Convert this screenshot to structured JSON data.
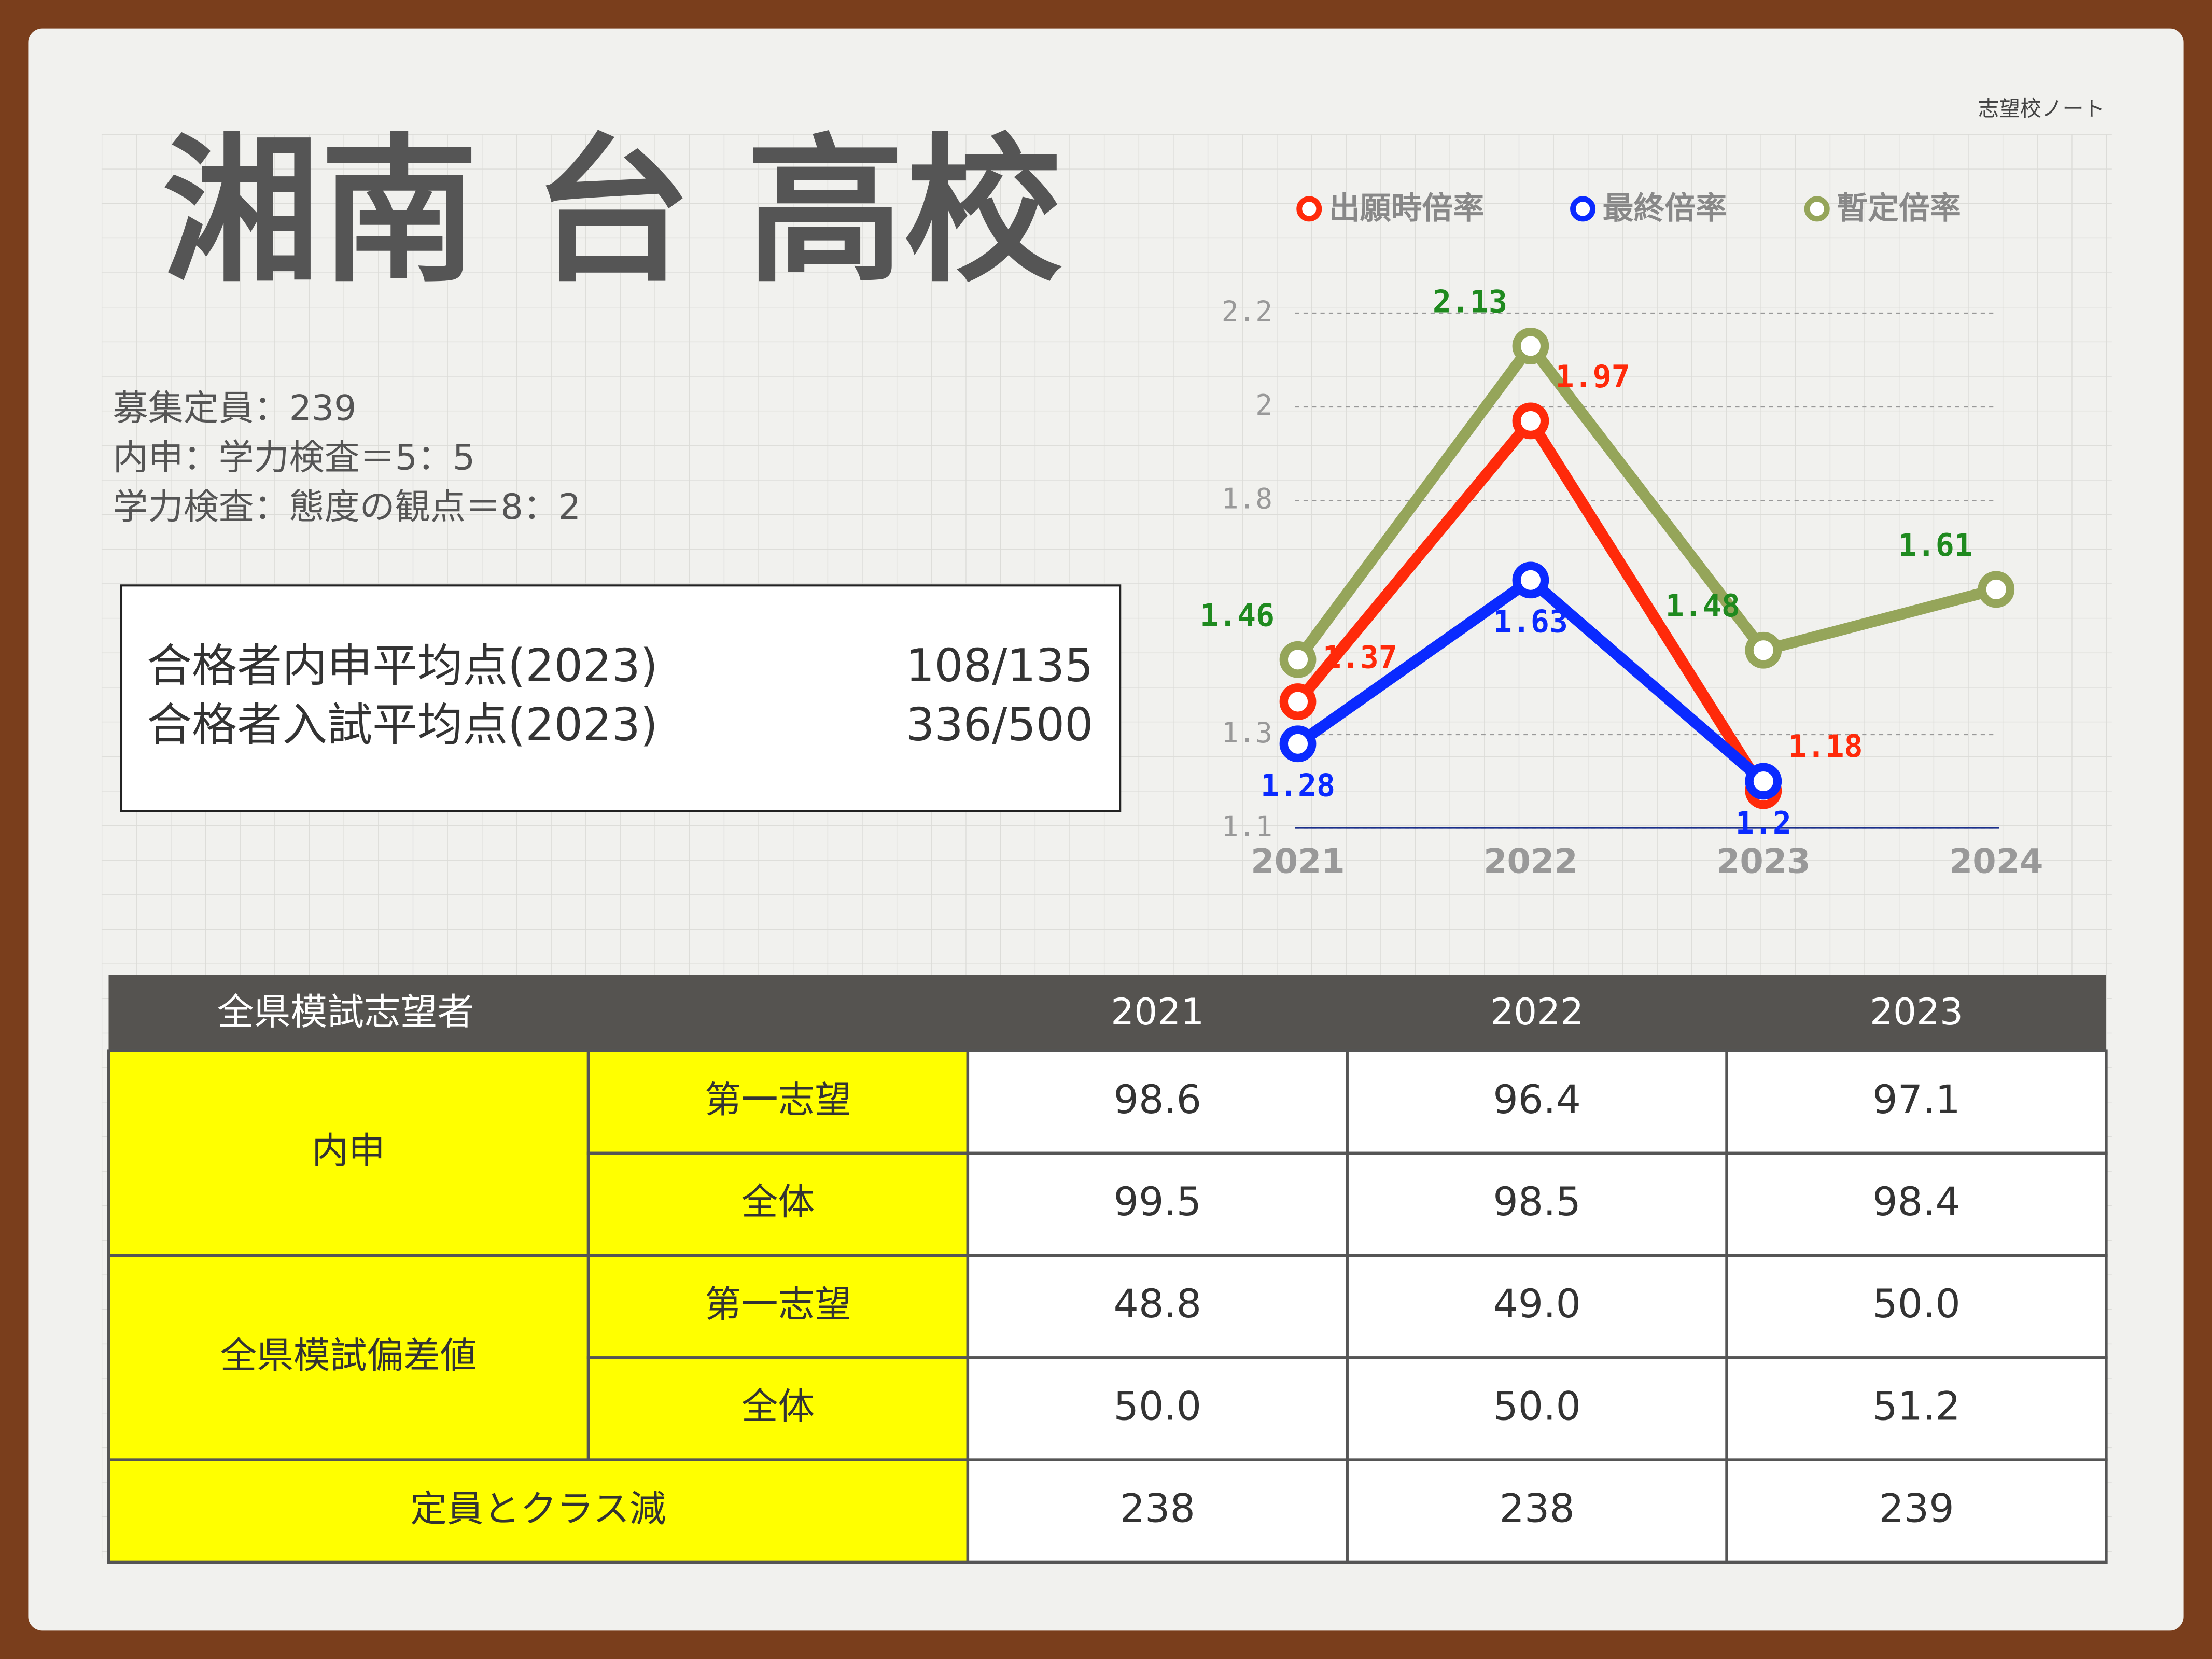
{
  "brand": "志望校ノート",
  "header": {
    "title": "湘南 台 高校"
  },
  "info": [
    "募集定員：239",
    "内申：学力検査＝5：5",
    "学力検査：態度の観点＝8：2"
  ],
  "scores": [
    {
      "label": "合格者内申平均点(2023)",
      "value": "108/135"
    },
    {
      "label": "合格者入試平均点(2023)",
      "value": "336/500"
    }
  ],
  "chart_data": {
    "type": "line",
    "categories": [
      "2021",
      "2022",
      "2023",
      "2024"
    ],
    "series": [
      {
        "name": "出願時倍率",
        "color": "#ff2a0a",
        "label_color": "#ff2a0a",
        "values": [
          1.37,
          1.97,
          1.18,
          null
        ]
      },
      {
        "name": "最終倍率",
        "color": "#0a2aff",
        "label_color": "#0a2aff",
        "values": [
          1.28,
          1.63,
          1.2,
          null
        ]
      },
      {
        "name": "暫定倍率",
        "color": "#95a55a",
        "label_color": "#1f8a1f",
        "values": [
          1.46,
          2.13,
          1.48,
          1.61
        ]
      }
    ],
    "ylim": [
      1.1,
      2.2
    ],
    "yticks": [
      1.1,
      1.3,
      1.8,
      2.0,
      2.2
    ],
    "grid": true
  },
  "table": {
    "header": [
      "全県模試志望者",
      "2021",
      "2022",
      "2023"
    ],
    "groups": [
      {
        "label": "内申",
        "rows": [
          {
            "label": "第一志望",
            "values": [
              "98.6",
              "96.4",
              "97.1"
            ]
          },
          {
            "label": "全体",
            "values": [
              "99.5",
              "98.5",
              "98.4"
            ]
          }
        ]
      },
      {
        "label": "全県模試偏差値",
        "rows": [
          {
            "label": "第一志望",
            "values": [
              "48.8",
              "49.0",
              "50.0"
            ]
          },
          {
            "label": "全体",
            "values": [
              "50.0",
              "50.0",
              "51.2"
            ]
          }
        ]
      }
    ],
    "footer": {
      "label": "定員とクラス減",
      "values": [
        "238",
        "238",
        "239"
      ]
    }
  }
}
